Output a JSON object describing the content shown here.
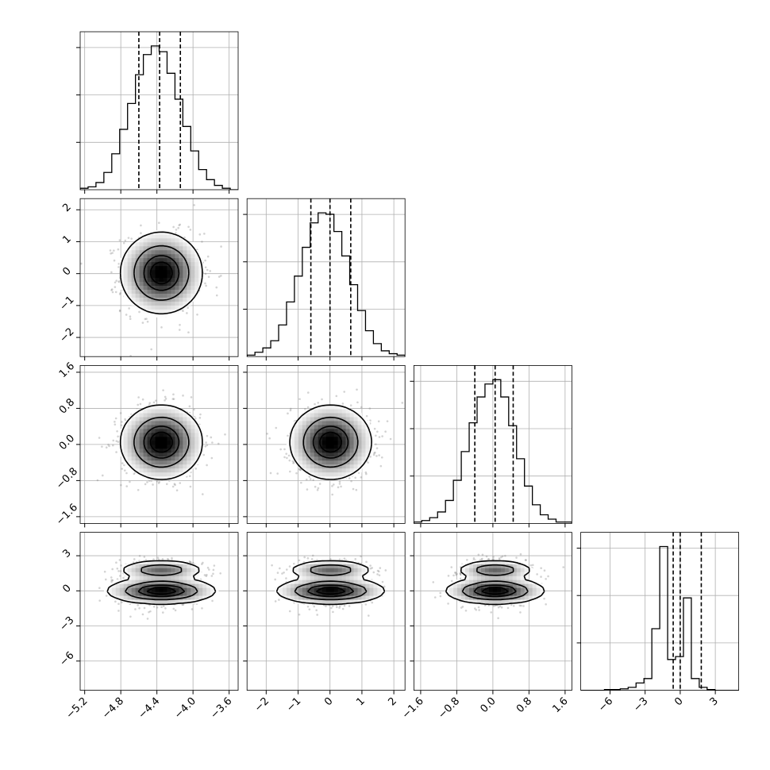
{
  "chart_data": {
    "type": "corner",
    "variables": [
      {
        "range": [
          -5.25,
          -3.5
        ],
        "ticks": [
          -5.2,
          -4.8,
          -4.4,
          -4.0,
          -3.6
        ],
        "tick_labels": [
          "−5.2",
          "−4.8",
          "−4.4",
          "−4.0",
          "−3.6"
        ],
        "quantiles": [
          -4.6,
          -4.37,
          -4.14
        ],
        "hist_edges": [
          -5.25,
          -5.1625,
          -5.075,
          -4.9875,
          -4.9,
          -4.8125,
          -4.725,
          -4.6375,
          -4.55,
          -4.4625,
          -4.375,
          -4.2875,
          -4.2,
          -4.1125,
          -4.025,
          -3.9375,
          -3.85,
          -3.7625,
          -3.675,
          -3.5875,
          -3.5
        ],
        "hist_counts": [
          0.01,
          0.02,
          0.05,
          0.12,
          0.25,
          0.42,
          0.6,
          0.8,
          0.94,
          1.0,
          0.96,
          0.81,
          0.63,
          0.44,
          0.27,
          0.14,
          0.07,
          0.03,
          0.01,
          0.0
        ],
        "center": -4.35,
        "spread": 0.22
      },
      {
        "range": [
          -2.6,
          2.35
        ],
        "ticks": [
          -2,
          -1,
          0,
          1,
          2
        ],
        "tick_labels": [
          "−2",
          "−1",
          "0",
          "1",
          "2"
        ],
        "quantiles": [
          -0.6,
          0.0,
          0.65
        ],
        "hist_edges": [
          -2.6,
          -2.3525,
          -2.105,
          -1.8575,
          -1.61,
          -1.3625,
          -1.115,
          -0.8675,
          -0.62,
          -0.3725,
          -0.125,
          0.1225,
          0.37,
          0.6175,
          0.865,
          1.1125,
          1.36,
          1.6075,
          1.855,
          2.1025,
          2.35
        ],
        "hist_counts": [
          0.01,
          0.03,
          0.06,
          0.11,
          0.22,
          0.38,
          0.56,
          0.76,
          0.93,
          1.0,
          0.99,
          0.87,
          0.7,
          0.5,
          0.32,
          0.18,
          0.09,
          0.04,
          0.02,
          0.01
        ],
        "center": 0.02,
        "spread": 0.62
      },
      {
        "range": [
          -1.75,
          1.75
        ],
        "ticks": [
          -1.6,
          -0.8,
          0.0,
          0.8,
          1.6
        ],
        "tick_labels": [
          "−1.6",
          "−0.8",
          "0.0",
          "0.8",
          "1.6"
        ],
        "quantiles": [
          -0.4,
          0.05,
          0.45
        ],
        "hist_edges": [
          -1.75,
          -1.575,
          -1.4,
          -1.225,
          -1.05,
          -0.875,
          -0.7,
          -0.525,
          -0.35,
          -0.175,
          0.0,
          0.175,
          0.35,
          0.525,
          0.7,
          0.875,
          1.05,
          1.225,
          1.4,
          1.575,
          1.75
        ],
        "hist_counts": [
          0.01,
          0.02,
          0.04,
          0.08,
          0.16,
          0.3,
          0.5,
          0.7,
          0.88,
          0.97,
          1.0,
          0.88,
          0.68,
          0.45,
          0.26,
          0.13,
          0.06,
          0.03,
          0.01,
          0.01
        ],
        "center": 0.05,
        "spread": 0.4
      },
      {
        "range": [
          -8.5,
          5.0
        ],
        "ticks": [
          -6,
          -3,
          0,
          3
        ],
        "tick_labels": [
          "−6",
          "−3",
          "0",
          "3"
        ],
        "quantiles": [
          -0.6,
          0.0,
          1.8
        ],
        "hist_edges": [
          -8.5,
          -7.825,
          -7.15,
          -6.475,
          -5.8,
          -5.125,
          -4.45,
          -3.775,
          -3.1,
          -2.425,
          -1.75,
          -1.075,
          -0.4,
          0.275,
          0.95,
          1.625,
          2.3,
          2.975,
          3.65,
          4.325,
          5.0
        ],
        "hist_counts": [
          0.0,
          0.0,
          0.0,
          0.005,
          0.005,
          0.01,
          0.02,
          0.05,
          0.08,
          0.42,
          0.98,
          0.21,
          0.23,
          0.63,
          0.08,
          0.02,
          0.005,
          0.0,
          0.0,
          0.0
        ],
        "mixture": [
          {
            "center": 0.0,
            "spread_x": 1.15,
            "spread_y": 0.55,
            "weight": 0.6
          },
          {
            "center": 1.8,
            "spread_x": 0.9,
            "spread_y": 0.4,
            "weight": 0.4
          }
        ]
      }
    ],
    "contour_levels": [
      0.12,
      0.39,
      0.68,
      0.86
    ],
    "contour_description": "2D histograms with 4 contour levels; joint density shown in grayscale with outer scatter points",
    "histogram_style": "step",
    "quantile_line_style": "dashed",
    "grid": true,
    "colors": {
      "line": "#000000",
      "grid": "#b0b0b0",
      "scatter": "#808080",
      "background": "#ffffff"
    }
  }
}
